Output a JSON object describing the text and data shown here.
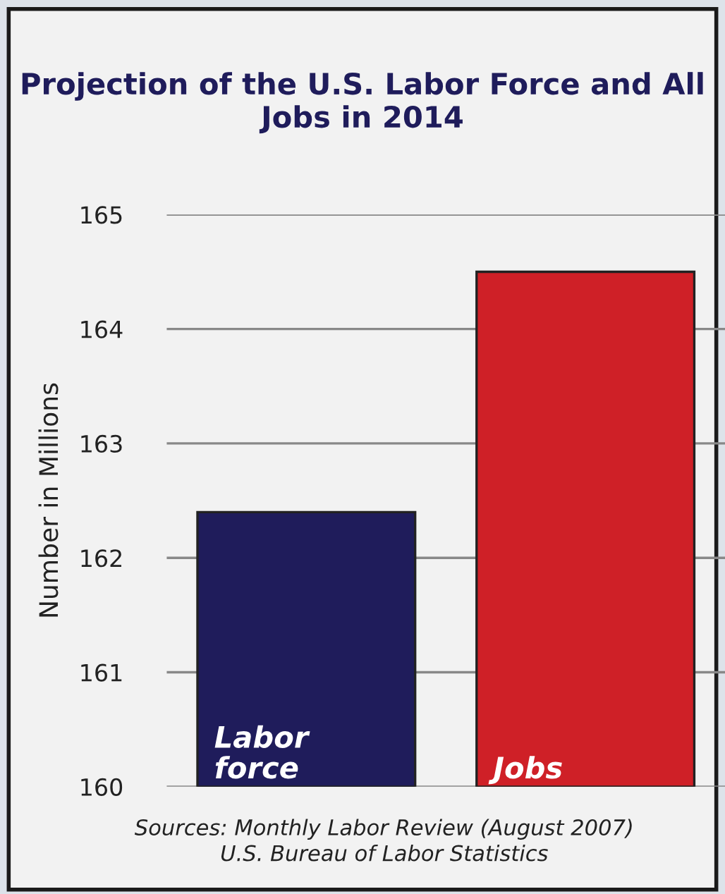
{
  "chart_data": {
    "type": "bar",
    "title": "Projection of the U.S. Labor Force and All Jobs in 2014",
    "ylabel": "Number in Millions",
    "categories": [
      "Labor force",
      "Jobs"
    ],
    "values": [
      162.4,
      164.5
    ],
    "colors": [
      "#1f1c5b",
      "#cf2027"
    ],
    "ylim": [
      160,
      165
    ],
    "yticks": [
      160,
      161,
      162,
      163,
      164,
      165
    ],
    "grid": "y",
    "annotations": [
      "Sources: Monthly Labor Review (August 2007)\nU.S. Bureau of Labor Statistics"
    ]
  }
}
